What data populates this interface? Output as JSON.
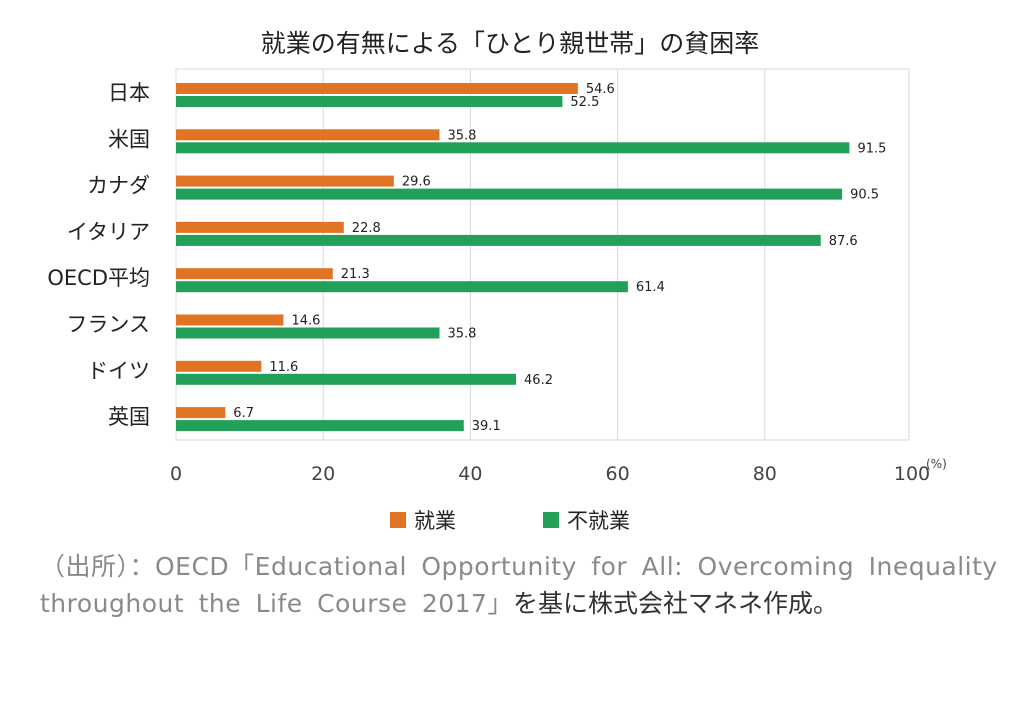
{
  "chart_data": {
    "type": "bar",
    "orientation": "horizontal",
    "title": "就業の有無による「ひとり親世帯」の貧困率",
    "categories": [
      "日本",
      "米国",
      "カナダ",
      "イタリア",
      "OECD平均",
      "フランス",
      "ドイツ",
      "英国"
    ],
    "series": [
      {
        "name": "就業",
        "color": "#e07424",
        "values": [
          54.6,
          35.8,
          29.6,
          22.8,
          21.3,
          14.6,
          11.6,
          6.7
        ]
      },
      {
        "name": "不就業",
        "color": "#22a05a",
        "values": [
          52.5,
          91.5,
          90.5,
          87.6,
          61.4,
          35.8,
          46.2,
          39.1
        ]
      }
    ],
    "xlim": [
      0,
      100
    ],
    "xticks": [
      "0",
      "20",
      "40",
      "60",
      "80",
      "100"
    ],
    "unit": "(%)",
    "grid": true,
    "legend_position": "bottom"
  },
  "caption": {
    "text": "（出所）：OECD「Educational Opportunity for All: Overcoming Inequality throughout the Life Course 2017」",
    "tail": "を基に株式会社マネネ作成。"
  }
}
